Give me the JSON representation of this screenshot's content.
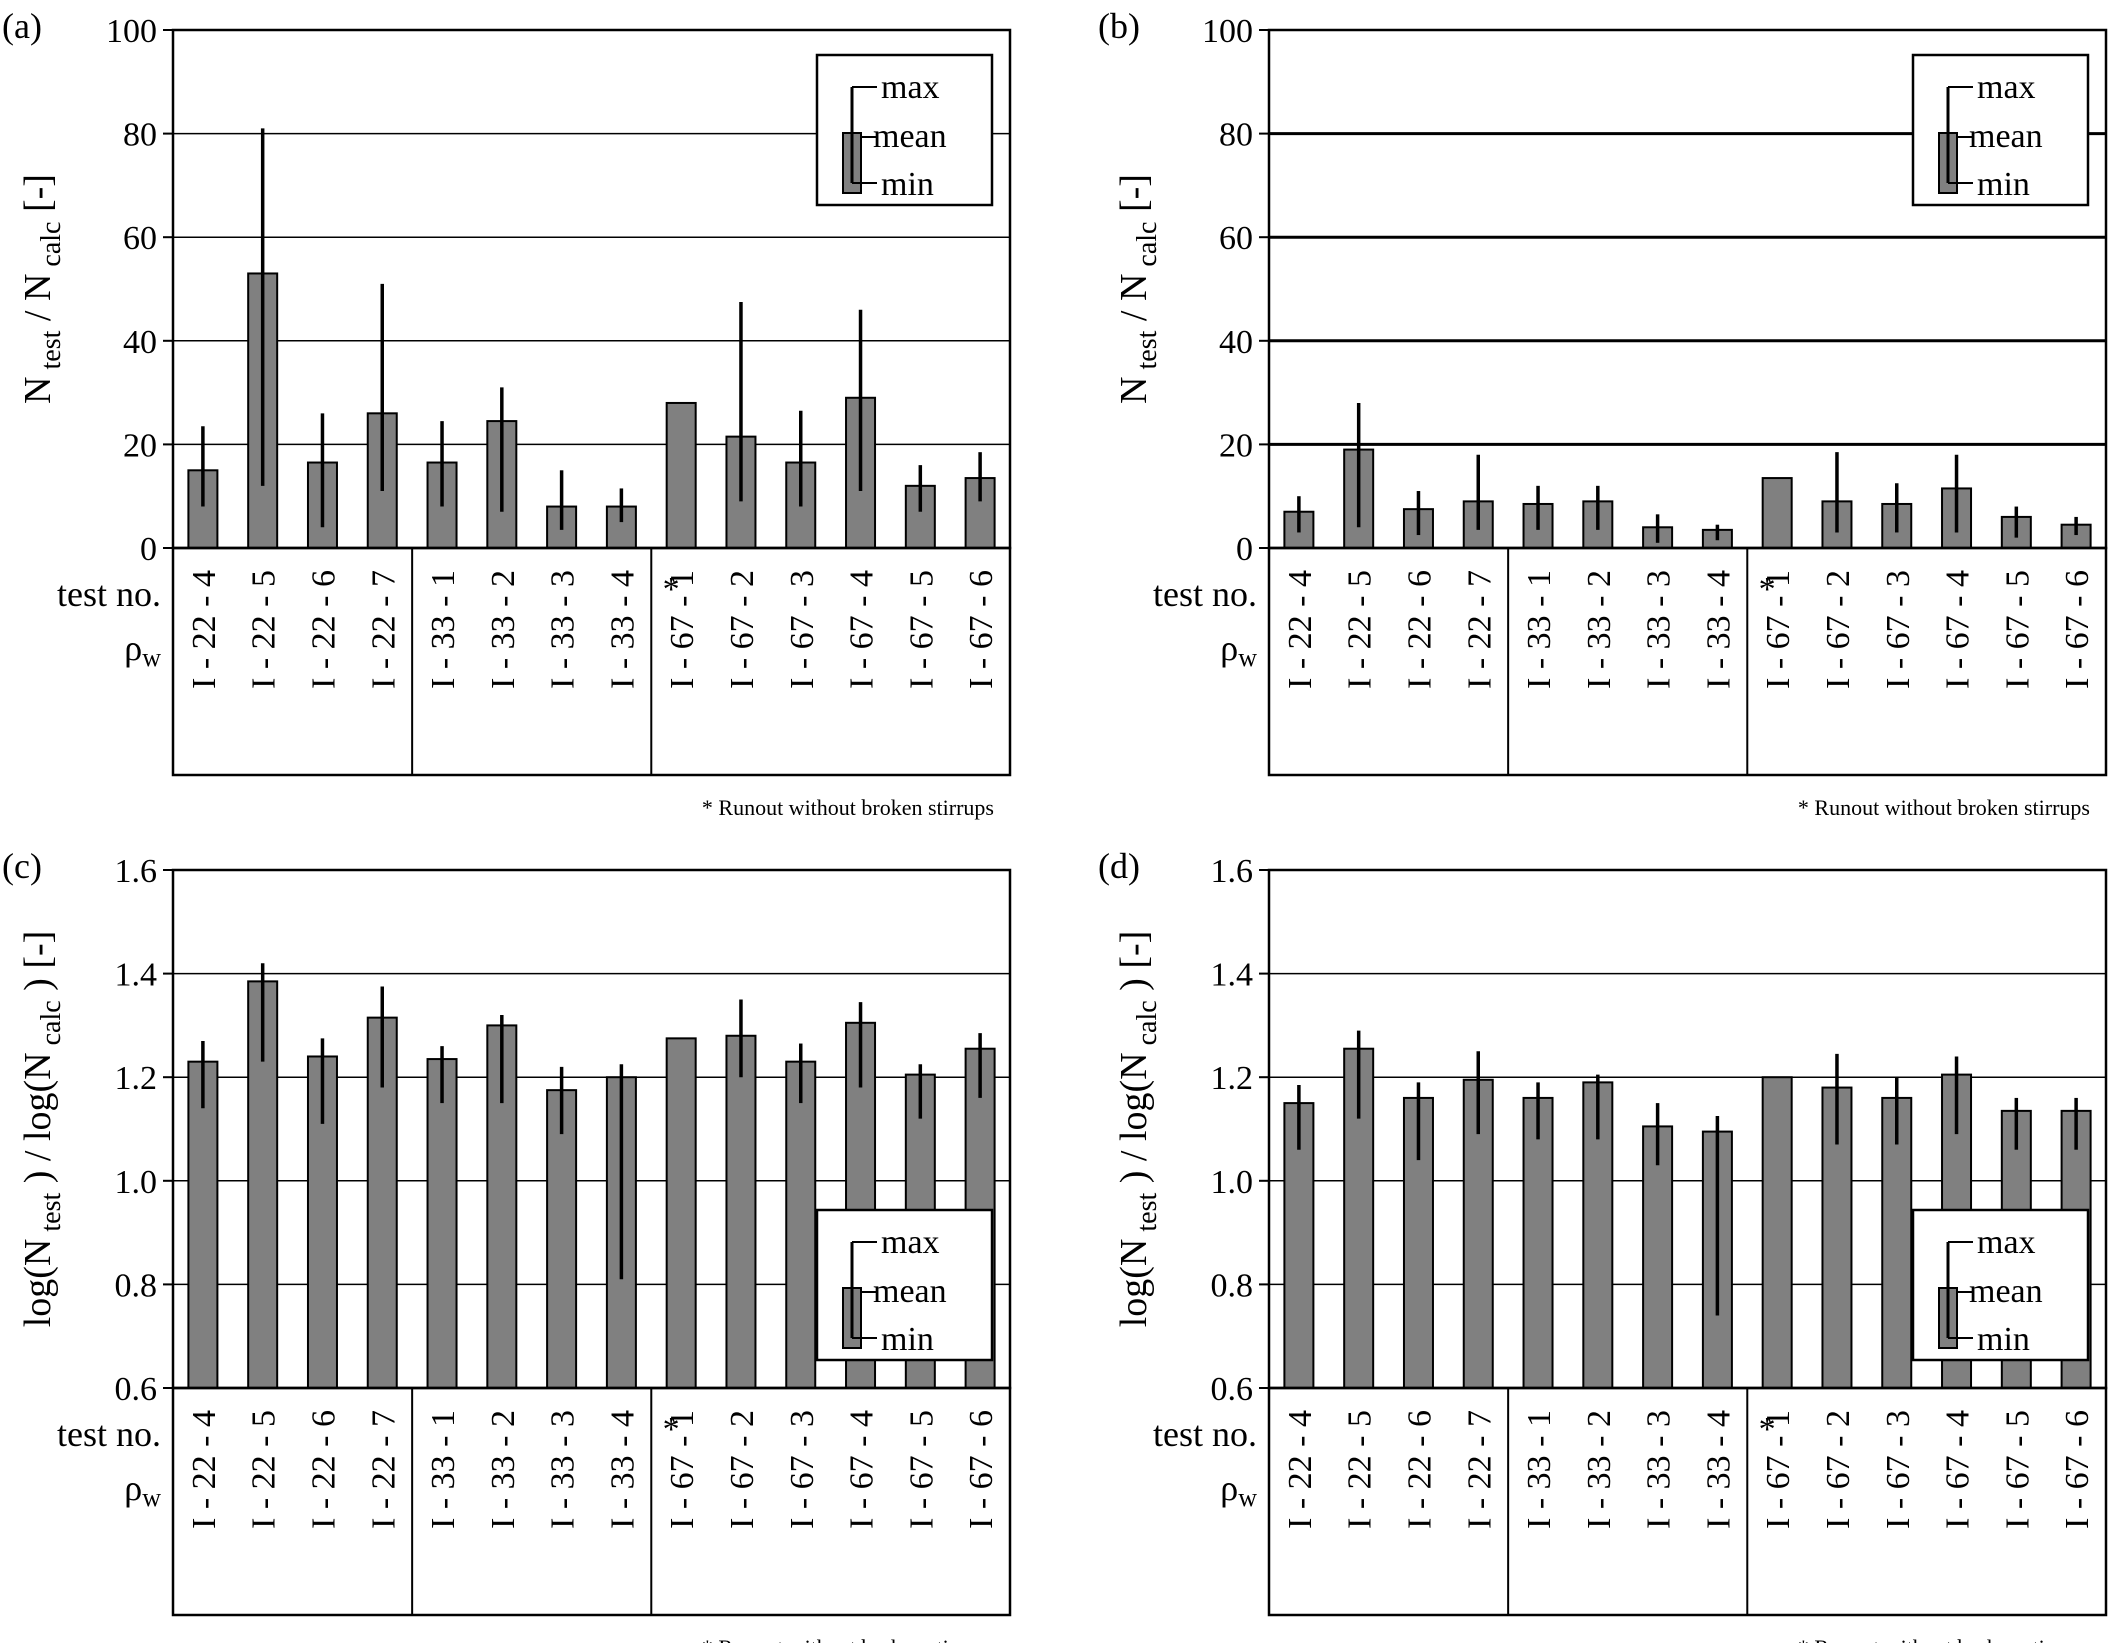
{
  "chart_data": [
    {
      "type": "bar",
      "panel_label": "(a)",
      "ylabel_main": "N",
      "ylabel_sub1": "test",
      "ylabel_mid": "/ N",
      "ylabel_sub2": "calc",
      "ylabel_unit": "[-]",
      "ylim": [
        0,
        100
      ],
      "yticks": [
        "0",
        "20",
        "40",
        "60",
        "80",
        "100"
      ],
      "grid": true,
      "legend": [
        "max",
        "mean",
        "min"
      ],
      "legend_position": "top-right",
      "categories": [
        "I - 22 - 4",
        "I - 22 - 5",
        "I - 22 - 6",
        "I - 22 - 7",
        "I - 33 - 1",
        "I - 33 - 2",
        "I - 33 - 3",
        "I - 33 - 4",
        "I - 67 - 1",
        "I - 67 - 2",
        "I - 67 - 3",
        "I - 67 - 4",
        "I - 67 - 5",
        "I - 67 - 6"
      ],
      "mean": [
        15,
        53,
        16.5,
        26,
        16.5,
        24.5,
        8,
        8,
        28,
        21.5,
        16.5,
        29,
        12,
        13.5
      ],
      "max": [
        23.5,
        81,
        26,
        51,
        24.5,
        31,
        15,
        11.5,
        null,
        47.5,
        26.5,
        46,
        16,
        18.5
      ],
      "min": [
        8,
        12,
        4,
        11,
        8,
        7,
        3.5,
        5,
        null,
        9,
        8,
        11,
        7,
        9
      ],
      "row_label_1": "test no.",
      "row_label_2": "ρ",
      "row_label_2_sub": "w",
      "runout_marker": "*",
      "footnote": "* Runout without broken stirrups"
    },
    {
      "type": "bar",
      "panel_label": "(b)",
      "ylabel_main": "N",
      "ylabel_sub1": "test",
      "ylabel_mid": "/ N",
      "ylabel_sub2": "calc",
      "ylabel_unit": "[-]",
      "ylim": [
        0,
        100
      ],
      "yticks": [
        "0",
        "20",
        "40",
        "60",
        "80",
        "100"
      ],
      "grid": true,
      "legend": [
        "max",
        "mean",
        "min"
      ],
      "legend_position": "top-right",
      "categories": [
        "I - 22 - 4",
        "I - 22 - 5",
        "I - 22 - 6",
        "I - 22 - 7",
        "I - 33 - 1",
        "I - 33 - 2",
        "I - 33 - 3",
        "I - 33 - 4",
        "I - 67 - 1",
        "I - 67 - 2",
        "I - 67 - 3",
        "I - 67 - 4",
        "I - 67 - 5",
        "I - 67 - 6"
      ],
      "mean": [
        7,
        19,
        7.5,
        9,
        8.5,
        9,
        4,
        3.5,
        13.5,
        9,
        8.5,
        11.5,
        6,
        4.5
      ],
      "max": [
        10,
        28,
        11,
        18,
        12,
        12,
        6.5,
        4.5,
        null,
        18.5,
        12.5,
        18,
        8,
        6
      ],
      "min": [
        3,
        4,
        2.5,
        3.5,
        3.5,
        3.5,
        1,
        1.5,
        null,
        3,
        3,
        3,
        2,
        2.5
      ],
      "row_label_1": "test no.",
      "row_label_2": "ρ",
      "row_label_2_sub": "w",
      "runout_marker": "*",
      "footnote": "* Runout without broken stirrups"
    },
    {
      "type": "bar",
      "panel_label": "(c)",
      "ylabel_main": "log(N",
      "ylabel_sub1": "test",
      "ylabel_mid": ") / log(N",
      "ylabel_sub2": "calc",
      "ylabel_unit": ") [-]",
      "ylim": [
        0.6,
        1.6
      ],
      "yticks": [
        "0.6",
        "0.8",
        "1.0",
        "1.2",
        "1.4",
        "1.6"
      ],
      "grid": true,
      "legend": [
        "max",
        "mean",
        "min"
      ],
      "legend_position": "bottom-right",
      "categories": [
        "I - 22 - 4",
        "I - 22 - 5",
        "I - 22 - 6",
        "I - 22 - 7",
        "I - 33 - 1",
        "I - 33 - 2",
        "I - 33 - 3",
        "I - 33 - 4",
        "I - 67 - 1",
        "I - 67 - 2",
        "I - 67 - 3",
        "I - 67 - 4",
        "I - 67 - 5",
        "I - 67 - 6"
      ],
      "mean": [
        1.23,
        1.385,
        1.24,
        1.315,
        1.235,
        1.3,
        1.175,
        1.2,
        1.275,
        1.28,
        1.23,
        1.305,
        1.205,
        1.255
      ],
      "max": [
        1.27,
        1.42,
        1.275,
        1.375,
        1.26,
        1.32,
        1.22,
        1.225,
        null,
        1.35,
        1.265,
        1.345,
        1.225,
        1.285
      ],
      "min": [
        1.14,
        1.23,
        1.11,
        1.18,
        1.15,
        1.15,
        1.09,
        0.81,
        null,
        1.2,
        1.15,
        1.18,
        1.12,
        1.16
      ],
      "row_label_1": "test no.",
      "row_label_2": "ρ",
      "row_label_2_sub": "w",
      "runout_marker": "*",
      "footnote": "* Runout without broken stirrups"
    },
    {
      "type": "bar",
      "panel_label": "(d)",
      "ylabel_main": "log(N",
      "ylabel_sub1": "test",
      "ylabel_mid": ") / log(N",
      "ylabel_sub2": "calc",
      "ylabel_unit": ") [-]",
      "ylim": [
        0.6,
        1.6
      ],
      "yticks": [
        "0.6",
        "0.8",
        "1.0",
        "1.2",
        "1.4",
        "1.6"
      ],
      "grid": true,
      "legend": [
        "max",
        "mean",
        "min"
      ],
      "legend_position": "bottom-right",
      "categories": [
        "I - 22 - 4",
        "I - 22 - 5",
        "I - 22 - 6",
        "I - 22 - 7",
        "I - 33 - 1",
        "I - 33 - 2",
        "I - 33 - 3",
        "I - 33 - 4",
        "I - 67 - 1",
        "I - 67 - 2",
        "I - 67 - 3",
        "I - 67 - 4",
        "I - 67 - 5",
        "I - 67 - 6"
      ],
      "mean": [
        1.15,
        1.255,
        1.16,
        1.195,
        1.16,
        1.19,
        1.105,
        1.095,
        1.2,
        1.18,
        1.16,
        1.205,
        1.135,
        1.135
      ],
      "max": [
        1.185,
        1.29,
        1.19,
        1.25,
        1.19,
        1.205,
        1.15,
        1.125,
        null,
        1.245,
        1.2,
        1.24,
        1.16,
        1.16
      ],
      "min": [
        1.06,
        1.12,
        1.04,
        1.09,
        1.08,
        1.08,
        1.03,
        0.74,
        null,
        1.07,
        1.07,
        1.09,
        1.06,
        1.06
      ],
      "row_label_1": "test no.",
      "row_label_2": "ρ",
      "row_label_2_sub": "w",
      "runout_marker": "*",
      "footnote": "* Runout without broken stirrups"
    }
  ]
}
